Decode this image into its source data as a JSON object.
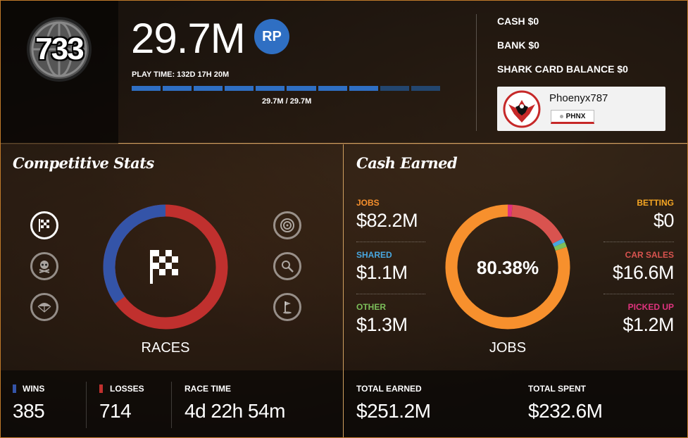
{
  "header": {
    "rank": "733",
    "rp_value": "29.7M",
    "rp_badge": "RP",
    "play_time": "PLAY TIME: 132D 17H 20M",
    "xp_text": "29.7M / 29.7M",
    "xp_progress": 0.75,
    "cash_label": "CASH",
    "cash_value": "$0",
    "bank_label": "BANK",
    "bank_value": "$0",
    "shark_label": "SHARK CARD BALANCE",
    "shark_value": "$0"
  },
  "crew": {
    "player_name": "Phoenyx787",
    "tag": "PHNX",
    "emblem_icon": "crew-emblem-bird-icon"
  },
  "competitive": {
    "title": "Competitive Stats",
    "ring_label": "RACES",
    "center_icon": "checkered-flag-icon",
    "wins_fraction": 0.35,
    "left_icons": [
      "races-icon",
      "deathmatch-skull-icon",
      "parachute-icon"
    ],
    "right_icons": [
      "target-icon",
      "golf-club-icon",
      "golf-flag-icon"
    ],
    "wins_label": "WINS",
    "wins_value": "385",
    "losses_label": "LOSSES",
    "losses_value": "714",
    "race_time_label": "RACE TIME",
    "race_time_value": "4d 22h 54m",
    "colors": {
      "wins": "#3454a8",
      "losses": "#c0302e"
    }
  },
  "cash_earned": {
    "title": "Cash Earned",
    "ring_center": "80.38%",
    "ring_label": "JOBS",
    "jobs_label": "JOBS",
    "jobs_value": "$82.2M",
    "shared_label": "SHARED",
    "shared_value": "$1.1M",
    "other_label": "OTHER",
    "other_value": "$1.3M",
    "betting_label": "BETTING",
    "betting_value": "$0",
    "car_sales_label": "CAR SALES",
    "car_sales_value": "$16.6M",
    "picked_up_label": "PICKED UP",
    "picked_up_value": "$1.2M",
    "total_earned_label": "TOTAL EARNED",
    "total_earned_value": "$251.2M",
    "total_spent_label": "TOTAL SPENT",
    "total_spent_value": "$232.6M",
    "colors": {
      "jobs": "#f7902d",
      "shared": "#48a7e0",
      "other": "#7cbf5a",
      "betting": "#f5a623",
      "car_sales": "#d9534f",
      "picked_up": "#e0337e"
    },
    "fractions": {
      "jobs": 0.8038,
      "picked_up": 0.012,
      "car_sales": 0.162,
      "shared": 0.011,
      "other": 0.013
    }
  }
}
